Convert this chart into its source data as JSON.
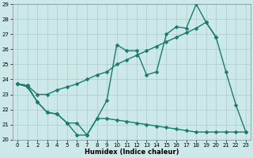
{
  "xlabel": "Humidex (Indice chaleur)",
  "x_values": [
    0,
    1,
    2,
    3,
    4,
    5,
    6,
    7,
    8,
    9,
    10,
    11,
    12,
    13,
    14,
    15,
    16,
    17,
    18,
    19,
    20,
    21,
    22,
    23
  ],
  "line_main": [
    23.7,
    23.6,
    22.5,
    21.8,
    21.7,
    21.1,
    20.3,
    20.3,
    21.4,
    22.6,
    26.3,
    25.9,
    25.9,
    24.3,
    24.5,
    27.0,
    27.5,
    27.4,
    29.0,
    27.8,
    26.8,
    24.5,
    22.3,
    20.5
  ],
  "line_trend": [
    23.7,
    23.6,
    23.0,
    23.0,
    23.3,
    23.5,
    23.7,
    24.0,
    24.3,
    24.5,
    25.0,
    25.3,
    25.6,
    25.9,
    26.2,
    26.5,
    26.8,
    27.1,
    27.4,
    27.8,
    26.8,
    null,
    null,
    null
  ],
  "line_min": [
    23.7,
    23.5,
    22.5,
    21.8,
    21.7,
    21.1,
    21.1,
    20.3,
    21.4,
    21.4,
    21.3,
    21.2,
    21.1,
    21.0,
    20.9,
    20.8,
    20.7,
    20.6,
    20.5,
    20.5,
    20.5,
    20.5,
    20.5,
    20.5
  ],
  "color": "#1a7a6e",
  "bg_color": "#cce8e8",
  "grid_color": "#aacccc",
  "ylim": [
    20,
    29
  ],
  "xlim": [
    -0.5,
    23.5
  ],
  "yticks": [
    20,
    21,
    22,
    23,
    24,
    25,
    26,
    27,
    28,
    29
  ],
  "xticks": [
    0,
    1,
    2,
    3,
    4,
    5,
    6,
    7,
    8,
    9,
    10,
    11,
    12,
    13,
    14,
    15,
    16,
    17,
    18,
    19,
    20,
    21,
    22,
    23
  ],
  "marker": "D",
  "marker_size": 2.5,
  "linewidth": 1.0
}
